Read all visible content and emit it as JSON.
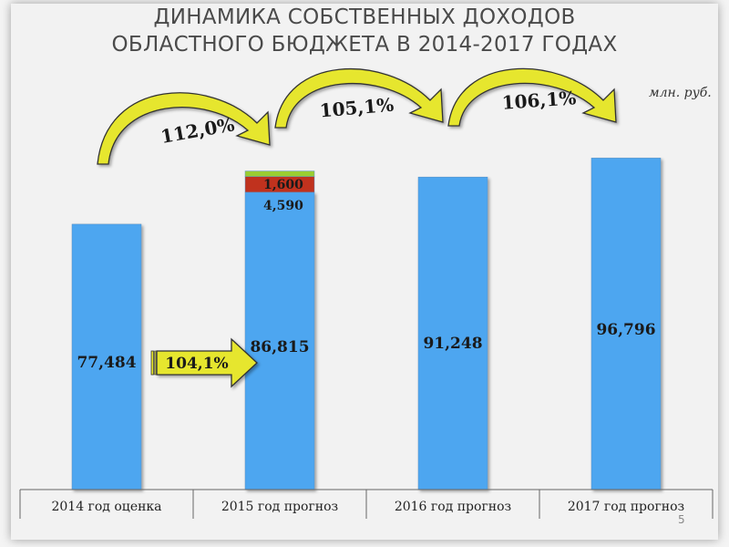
{
  "slide": {
    "title_line1": "ДИНАМИКА СОБСТВЕННЫХ ДОХОДОВ",
    "title_line2": "ОБЛАСТНОГО БЮДЖЕТА В 2014-2017 ГОДАХ",
    "unit": "млн. руб.",
    "page_number": "5"
  },
  "chart_data": {
    "type": "bar",
    "title": "",
    "xlabel": "",
    "ylabel": "",
    "categories": [
      "2014 год оценка",
      "2015 год прогноз",
      "2016 год прогноз",
      "2017 год прогноз"
    ],
    "series": [
      {
        "values": [
          77484,
          86815,
          91248,
          96796
        ],
        "labels": [
          "77,484",
          "86,815",
          "91,248",
          "96,796"
        ],
        "color": "#4da6f0"
      },
      {
        "values": [
          0,
          4590,
          0,
          0
        ],
        "labels": [
          "",
          "4,590",
          "",
          ""
        ],
        "color": "#c0321e"
      },
      {
        "values": [
          0,
          1600,
          0,
          0
        ],
        "labels": [
          "",
          "1,600",
          "",
          ""
        ],
        "color": "#9acd32"
      }
    ],
    "stacked": true,
    "ylim": [
      0,
      111000
    ],
    "grid": false,
    "legend": "none",
    "growth_annotations": [
      {
        "text": "112,0%",
        "from": 0,
        "to": 1,
        "type": "curved-arrow"
      },
      {
        "text": "105,1%",
        "from": 1,
        "to": 2,
        "type": "curved-arrow"
      },
      {
        "text": "106,1%",
        "from": 2,
        "to": 3,
        "type": "curved-arrow"
      },
      {
        "text": "104,1%",
        "from": 0,
        "to": 1,
        "type": "block-arrow"
      }
    ],
    "colors": {
      "arrow_fill": "#e6e62e",
      "arrow_stroke": "#333333",
      "axis": "#666666"
    }
  }
}
